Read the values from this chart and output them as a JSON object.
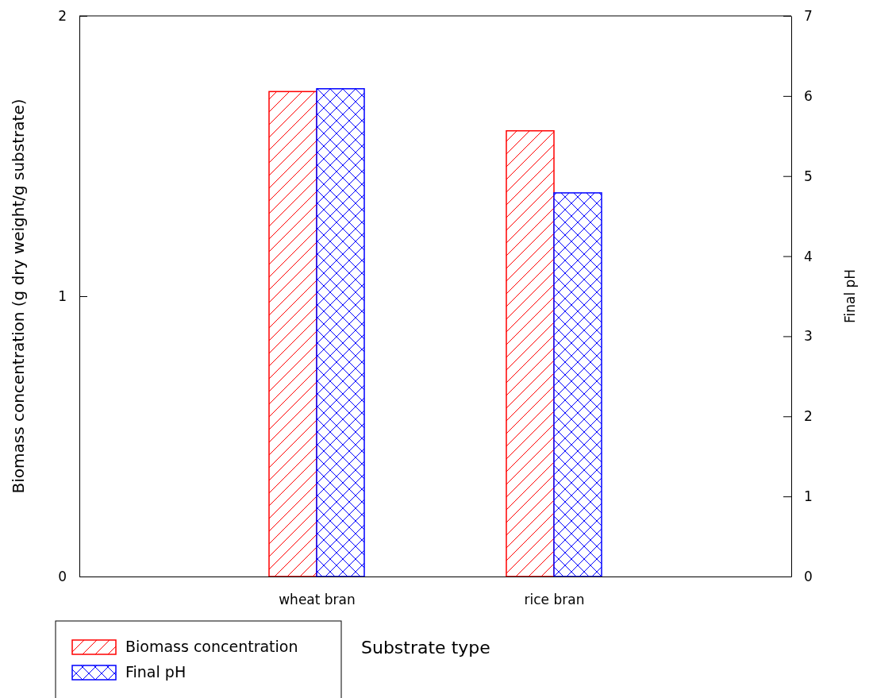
{
  "chart_data": {
    "type": "bar",
    "xlabel": "Substrate type",
    "ylabel": "Biomass concentration (g dry weight/g substrate)",
    "y2label": "Final pH",
    "categories": [
      "wheat bran",
      "rice bran"
    ],
    "series": [
      {
        "name": "Biomass concentration",
        "color": "#ff0000",
        "values": [
          1.73,
          1.59
        ]
      },
      {
        "name": "Final pH",
        "color": "#0000ff",
        "values": [
          6.09,
          4.79
        ],
        "axis": "y2"
      }
    ],
    "ylim": [
      0,
      2
    ],
    "yticks": [
      0,
      1,
      2
    ],
    "y2lim": [
      0,
      7
    ],
    "y2ticks": [
      0,
      1,
      2,
      3,
      4,
      5,
      6,
      7
    ],
    "grid": false,
    "legend": "bottom left"
  }
}
